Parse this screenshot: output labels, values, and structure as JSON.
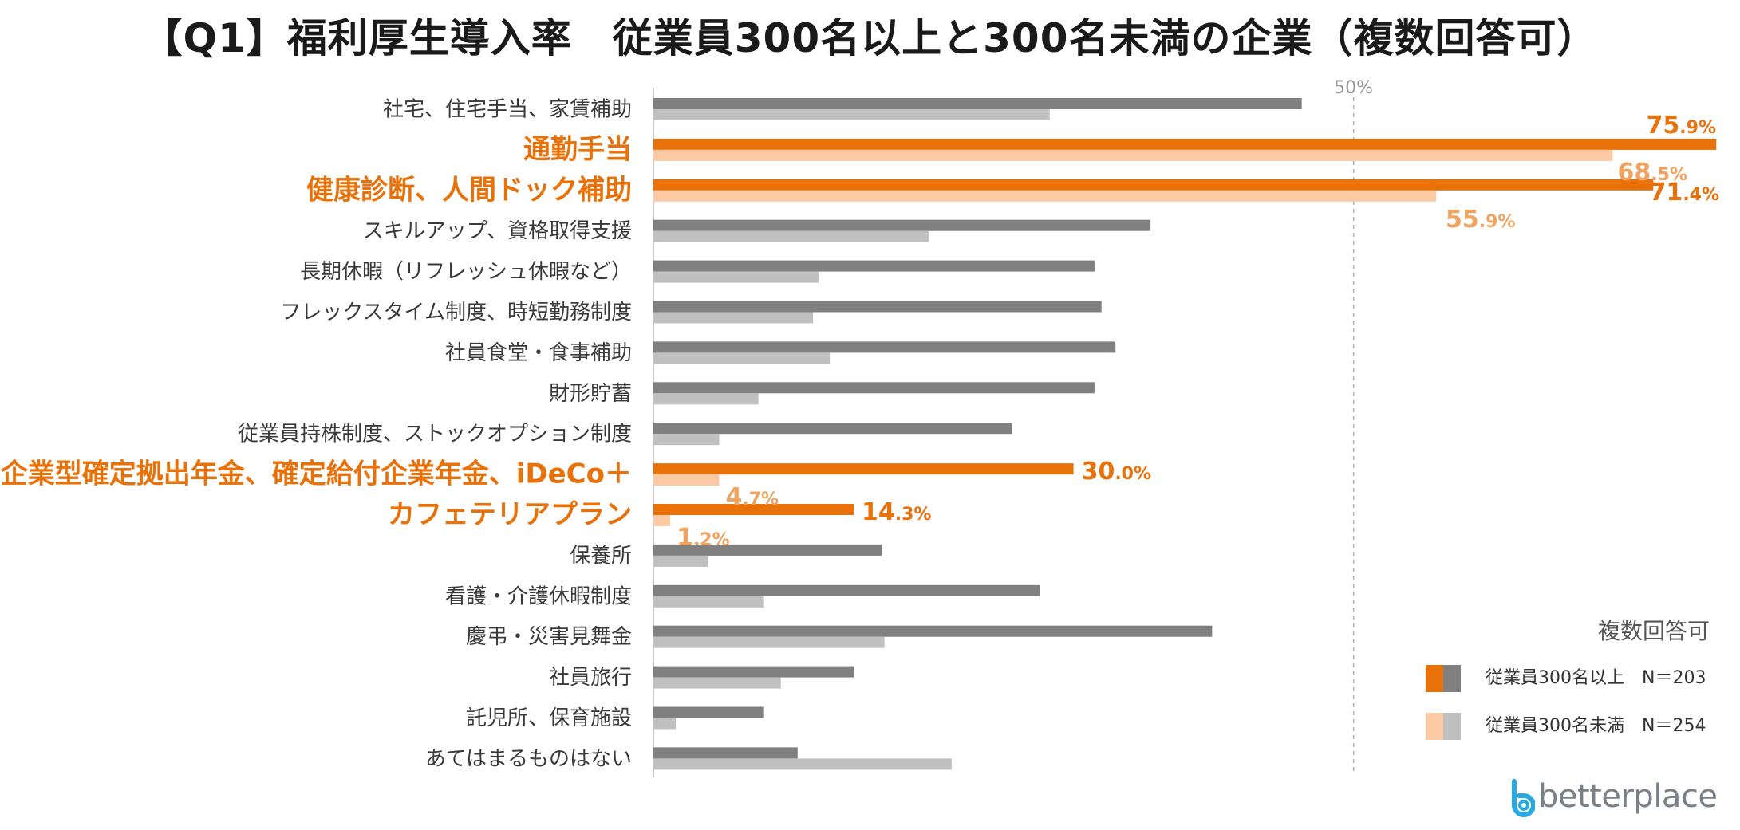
{
  "title": "【Q1】福利厚生導入率　従業員300名以上と300名未満の企業（複数回答可）",
  "chart_data": {
    "type": "bar",
    "orientation": "horizontal",
    "title": "【Q1】福利厚生導入率　従業員300名以上と300名未満の企業（複数回答可）",
    "xlim": [
      0,
      76
    ],
    "reference_line": {
      "value": 50,
      "label": "50%"
    },
    "categories": [
      "社宅、住宅手当、家賃補助",
      "通勤手当",
      "健康診断、人間ドック補助",
      "スキルアップ、資格取得支援",
      "長期休暇（リフレッシュ休暇など）",
      "フレックスタイム制度、時短勤務制度",
      "社員食堂・食事補助",
      "財形貯蓄",
      "従業員持株制度、ストックオプション制度",
      "企業型確定拠出年金、確定給付企業年金、iDeCo＋",
      "カフェテリアプラン",
      "保養所",
      "看護・介護休暇制度",
      "慶弔・災害見舞金",
      "社員旅行",
      "託児所、保育施設",
      "あてはまるものはない"
    ],
    "highlighted": [
      false,
      true,
      true,
      false,
      false,
      false,
      false,
      false,
      false,
      true,
      true,
      false,
      false,
      false,
      false,
      false,
      false
    ],
    "series": [
      {
        "name": "従業員300名以上　N＝203",
        "color": "#808080",
        "highlight_color": "#e8710a",
        "values": [
          46.3,
          75.9,
          71.4,
          35.5,
          31.5,
          32.0,
          33.0,
          31.5,
          25.6,
          30.0,
          14.3,
          16.3,
          27.6,
          39.9,
          14.3,
          7.9,
          10.3
        ]
      },
      {
        "name": "従業員300名未満　N＝254",
        "color": "#c0c0c0",
        "highlight_color": "#fbc9a3",
        "values": [
          28.3,
          68.5,
          55.9,
          19.7,
          11.8,
          11.4,
          12.6,
          7.5,
          4.7,
          4.7,
          1.2,
          3.9,
          7.9,
          16.5,
          9.1,
          1.6,
          21.3
        ]
      }
    ],
    "data_labels": [
      {
        "category_index": 1,
        "series": 0,
        "main": "75",
        "decimal": ".9%",
        "color": "#e8710a"
      },
      {
        "category_index": 1,
        "series": 1,
        "main": "68",
        "decimal": ".5%",
        "color": "#f0a360"
      },
      {
        "category_index": 2,
        "series": 0,
        "main": "71",
        "decimal": ".4%",
        "color": "#e8710a"
      },
      {
        "category_index": 2,
        "series": 1,
        "main": "55",
        "decimal": ".9%",
        "color": "#f0a360"
      },
      {
        "category_index": 9,
        "series": 0,
        "main": "30",
        "decimal": ".0%",
        "color": "#e8710a"
      },
      {
        "category_index": 9,
        "series": 1,
        "main": "4",
        "decimal": ".7%",
        "color": "#f0a360"
      },
      {
        "category_index": 10,
        "series": 0,
        "main": "14",
        "decimal": ".3%",
        "color": "#e8710a"
      },
      {
        "category_index": 10,
        "series": 1,
        "main": "1",
        "decimal": ".2%",
        "color": "#f0a360"
      }
    ]
  },
  "legend": {
    "note": "複数回答可",
    "items": [
      {
        "label": "従業員300名以上　N＝203",
        "colors": [
          "#e8710a",
          "#808080"
        ]
      },
      {
        "label": "従業員300名未満　N＝254",
        "colors": [
          "#fbc9a3",
          "#c0c0c0"
        ]
      }
    ]
  },
  "logo": {
    "text": "betterplace"
  }
}
